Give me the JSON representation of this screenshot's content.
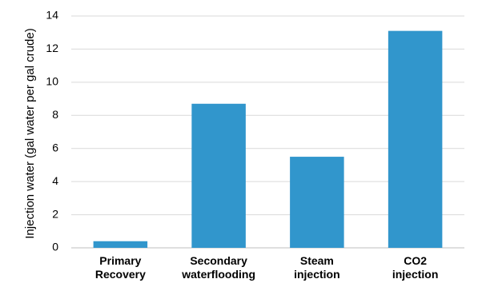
{
  "chart_data": {
    "type": "bar",
    "title": "",
    "xlabel": "",
    "ylabel": "Injection water (gal water per gal crude)",
    "categories": [
      [
        "Primary",
        "Recovery"
      ],
      [
        "Secondary",
        "waterflooding"
      ],
      [
        "Steam",
        "injection"
      ],
      [
        "CO2",
        "injection"
      ]
    ],
    "values": [
      0.4,
      8.7,
      5.5,
      13.1
    ],
    "ylim": [
      0,
      14
    ],
    "yticks": [
      0,
      2,
      4,
      6,
      8,
      10,
      12,
      14
    ],
    "grid": true,
    "legend": "none",
    "colors": {
      "bar": "#3196cc",
      "grid": "#d9d9d9",
      "axis": "#bfbfbf"
    }
  }
}
